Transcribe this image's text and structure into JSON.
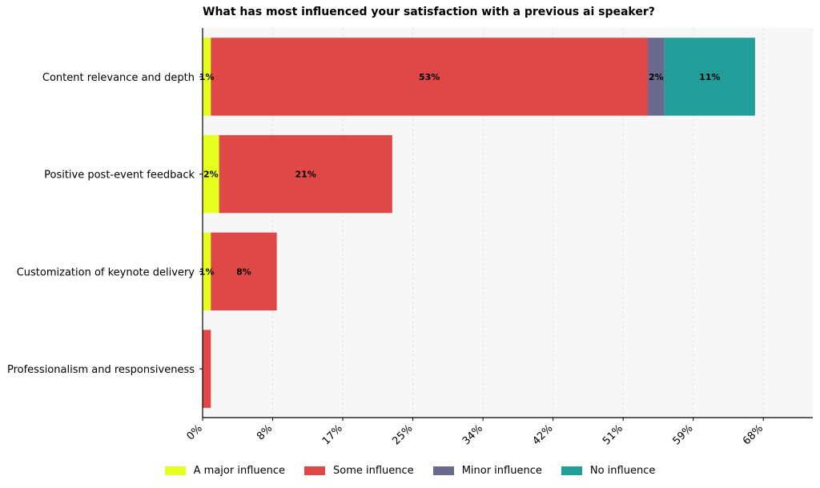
{
  "chart_data": {
    "type": "bar",
    "orientation": "horizontal",
    "stacked": true,
    "title": "What has most influenced your satisfaction with a previous ai speaker?",
    "xlabel": "",
    "ylabel": "",
    "xlim": [
      0,
      74
    ],
    "x_ticks": [
      "0%",
      "8%",
      "17%",
      "25%",
      "34%",
      "42%",
      "51%",
      "59%",
      "68%"
    ],
    "x_tick_values": [
      0,
      8.5,
      17,
      25.5,
      34,
      42.5,
      51,
      59.5,
      68
    ],
    "grid": true,
    "legend_position": "bottom-center",
    "categories": [
      "Content relevance and depth",
      "Positive post-event feedback",
      "Customization of keynote delivery",
      "Professionalism and responsiveness"
    ],
    "series": [
      {
        "name": "A major influence",
        "color": "#e5ff1f",
        "values": [
          1,
          2,
          1,
          0
        ],
        "labels": [
          "1%",
          "2%",
          "1%",
          ""
        ]
      },
      {
        "name": "Some influence",
        "color": "#e04848",
        "values": [
          53,
          21,
          8,
          1
        ],
        "labels": [
          "53%",
          "21%",
          "8%",
          ""
        ]
      },
      {
        "name": "Minor influence",
        "color": "#6a6a8e",
        "values": [
          2,
          0,
          0,
          0
        ],
        "labels": [
          "2%",
          "",
          "",
          ""
        ]
      },
      {
        "name": "No influence",
        "color": "#229e9a",
        "values": [
          11,
          0,
          0,
          0
        ],
        "labels": [
          "11%",
          "",
          "",
          ""
        ]
      }
    ]
  }
}
